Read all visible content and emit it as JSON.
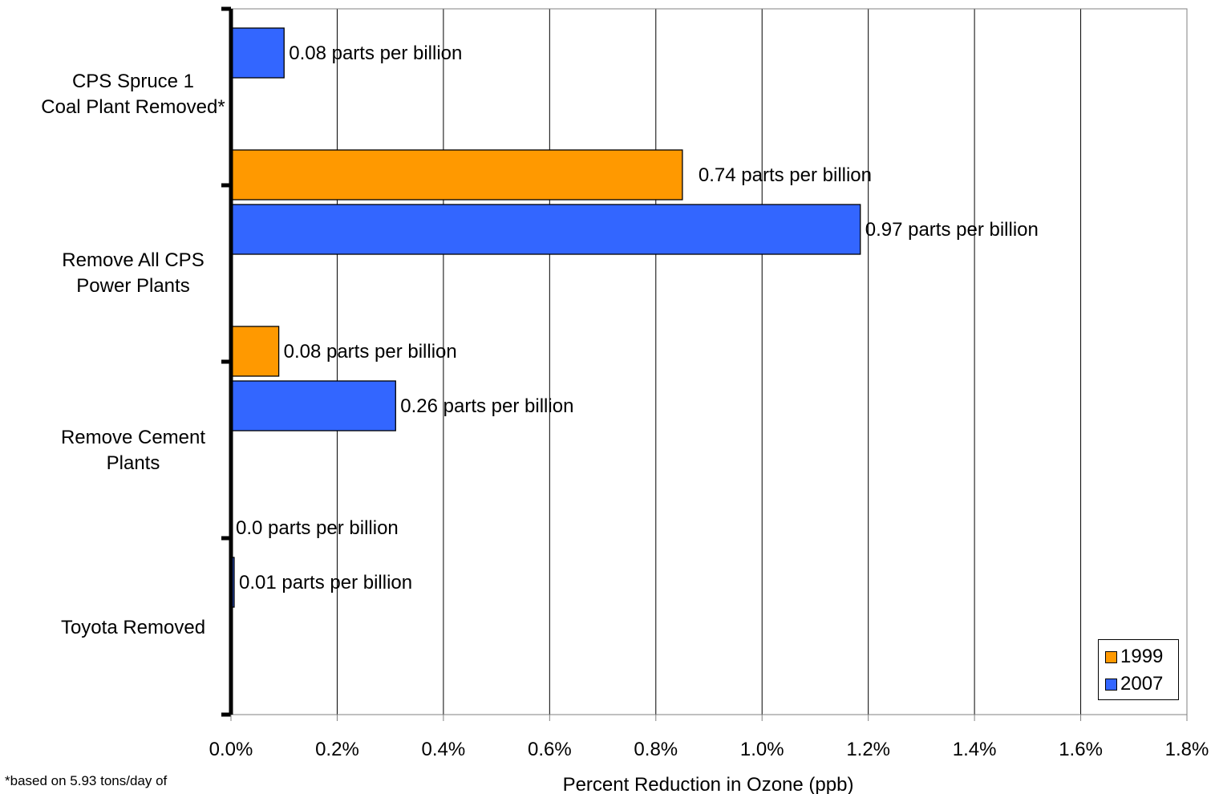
{
  "chart_data": {
    "type": "bar",
    "orientation": "horizontal",
    "categories": [
      "CPS Spruce 1\nCoal Plant Removed*",
      "Remove All CPS\nPower Plants",
      "Remove Cement\nPlants",
      "Toyota Removed"
    ],
    "series": [
      {
        "name": "1999",
        "color": "#FF9900",
        "values": [
          null,
          0.85,
          0.09,
          0.0
        ],
        "labels": [
          "",
          "0.74 parts per billion",
          "0.08 parts per billion",
          "0.0 parts per billion"
        ]
      },
      {
        "name": "2007",
        "color": "#3366FF",
        "values": [
          0.1,
          1.185,
          0.31,
          0.006
        ],
        "labels": [
          "0.08 parts per billion",
          "0.97 parts per billion",
          "0.26 parts per billion",
          "0.01 parts per billion"
        ]
      }
    ],
    "xlabel": "Percent Reduction in Ozone (ppb)",
    "xlim": [
      0,
      1.8
    ],
    "xticks": [
      "0.0%",
      "0.2%",
      "0.4%",
      "0.6%",
      "0.8%",
      "1.0%",
      "1.2%",
      "1.4%",
      "1.6%",
      "1.8%"
    ],
    "grid": true,
    "legend_position": "bottom-right",
    "footnote": "*based on 5.93 tons/day of"
  }
}
